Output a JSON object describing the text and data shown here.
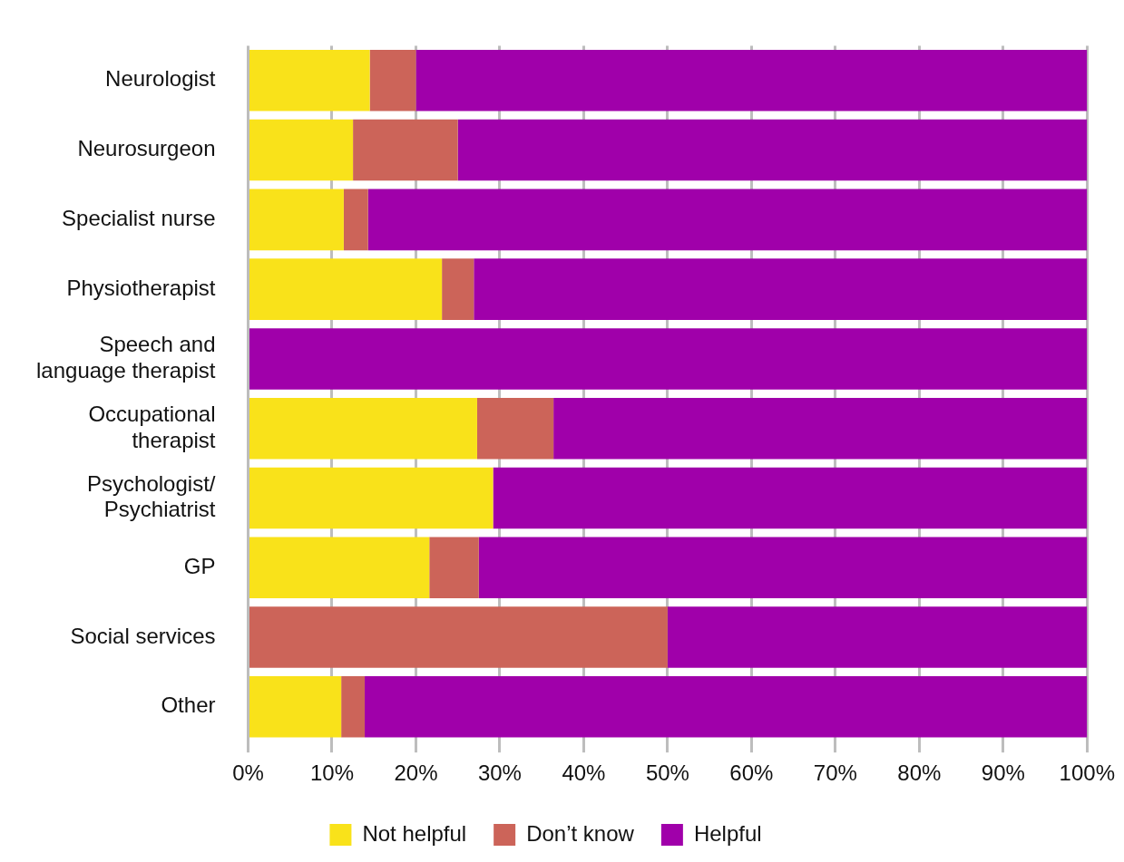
{
  "chart_data": {
    "type": "bar",
    "orientation": "horizontal",
    "stacked": true,
    "categories": [
      "Neurologist",
      "Neurosurgeon",
      "Specialist nurse",
      "Physiotherapist",
      "Speech and\nlanguage therapist",
      "Occupational\ntherapist",
      "Psychologist/\nPsychiatrist",
      "GP",
      "Social services",
      "Other"
    ],
    "series": [
      {
        "name": "Not helpful",
        "color": "#f9e21a",
        "values": [
          14.5,
          12.5,
          11.4,
          23.1,
          0,
          27.3,
          29.2,
          21.6,
          0,
          11.1
        ]
      },
      {
        "name": "Don’t know",
        "color": "#cc6459",
        "values": [
          5.5,
          12.5,
          2.9,
          3.8,
          0,
          9.1,
          0,
          5.9,
          50,
          2.8
        ]
      },
      {
        "name": "Helpful",
        "color": "#a000aa",
        "values": [
          80,
          75,
          85.7,
          73.1,
          100,
          63.6,
          70.8,
          72.5,
          50,
          86.1
        ]
      }
    ],
    "xlim": [
      0,
      100
    ],
    "xticks": [
      {
        "value": 0,
        "label": "0%"
      },
      {
        "value": 10,
        "label": "10%"
      },
      {
        "value": 20,
        "label": "20%"
      },
      {
        "value": 30,
        "label": "30%"
      },
      {
        "value": 40,
        "label": "40%"
      },
      {
        "value": 50,
        "label": "50%"
      },
      {
        "value": 60,
        "label": "60%"
      },
      {
        "value": 70,
        "label": "70%"
      },
      {
        "value": 80,
        "label": "80%"
      },
      {
        "value": 90,
        "label": "90%"
      },
      {
        "value": 100,
        "label": "100%"
      }
    ],
    "grid": "x",
    "legend": "bottom"
  }
}
